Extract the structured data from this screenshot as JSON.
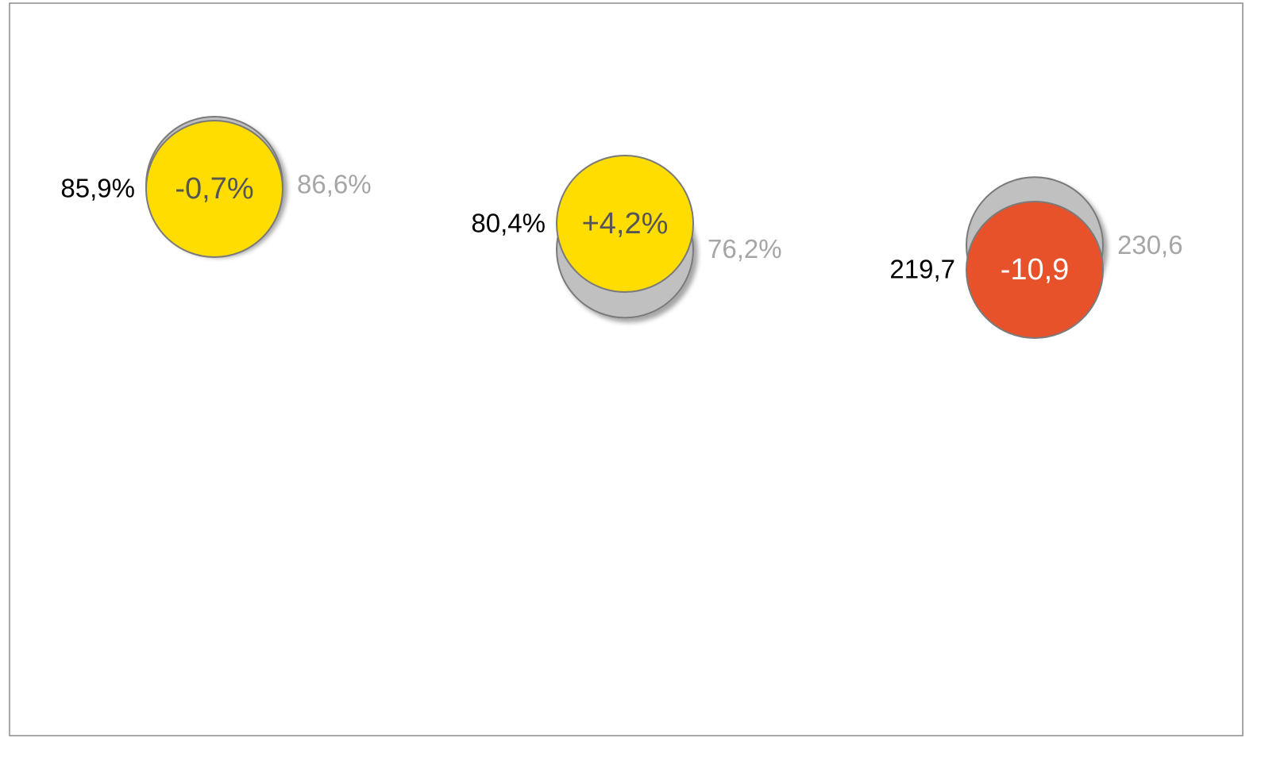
{
  "chart_data": {
    "type": "bubble-compare",
    "items": [
      {
        "current": 85.9,
        "current_label": "85,9%",
        "previous": 86.6,
        "previous_label": "86,6%",
        "change": -0.7,
        "change_label": "-0,7%",
        "color": "#FFDD00"
      },
      {
        "current": 80.4,
        "current_label": "80,4%",
        "previous": 76.2,
        "previous_label": "76,2%",
        "change": 4.2,
        "change_label": "+4,2%",
        "color": "#FFDD00"
      },
      {
        "current": 219.7,
        "current_label": "219,7",
        "previous": 230.6,
        "previous_label": "230,6",
        "change": -10.9,
        "change_label": "-10,9",
        "color": "#E8522B"
      }
    ],
    "previous_color": "#C0C0C0"
  }
}
